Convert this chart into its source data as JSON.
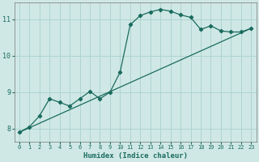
{
  "xlabel": "Humidex (Indice chaleur)",
  "background_color": "#cfe8e5",
  "grid_color": "#aed4d0",
  "line_color": "#1a6b5e",
  "xlim": [
    -0.5,
    23.5
  ],
  "ylim": [
    7.65,
    11.45
  ],
  "yticks": [
    8,
    9,
    10,
    11
  ],
  "xticks": [
    0,
    1,
    2,
    3,
    4,
    5,
    6,
    7,
    8,
    9,
    10,
    11,
    12,
    13,
    14,
    15,
    16,
    17,
    18,
    19,
    20,
    21,
    22,
    23
  ],
  "curve1_x": [
    0,
    1,
    2,
    3,
    4,
    5,
    6,
    7,
    8,
    9,
    10,
    11,
    12,
    13,
    14,
    15,
    16,
    17,
    18,
    19,
    20,
    21,
    22,
    23
  ],
  "curve1_y": [
    7.9,
    8.05,
    8.35,
    8.82,
    8.72,
    8.62,
    8.82,
    9.02,
    8.82,
    9.0,
    9.55,
    10.85,
    11.1,
    11.2,
    11.27,
    11.22,
    11.12,
    11.05,
    10.72,
    10.82,
    10.68,
    10.65,
    10.65,
    10.75
  ],
  "curve2_x": [
    0,
    23
  ],
  "curve2_y": [
    7.9,
    10.75
  ]
}
